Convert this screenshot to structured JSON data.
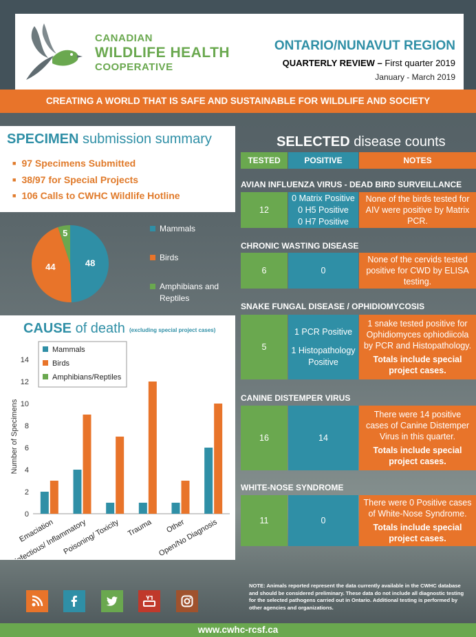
{
  "header": {
    "logo_line1": "CANADIAN",
    "logo_line2": "WILDLIFE HEALTH",
    "logo_line3": "COOPERATIVE",
    "region": "ONTARIO/NUNAVUT REGION",
    "review_bold": "QUARTERLY REVIEW –",
    "review_rest": " First quarter 2019",
    "dates": "January - March 2019",
    "colors": {
      "green": "#6aa84f",
      "teal": "#2f8fa6",
      "orange": "#e8742a"
    }
  },
  "banner": "CREATING A WORLD THAT IS SAFE AND SUSTAINABLE FOR WILDLIFE AND SOCIETY",
  "specimen": {
    "title_bold": "SPECIMEN",
    "title_rest": " submission summary",
    "items": [
      "97 Specimens Submitted",
      "38/97 for Special Projects",
      "106 Calls to CWHC Wildlife Hotline"
    ]
  },
  "pie_chart": {
    "chart_data": {
      "type": "pie",
      "slices": [
        {
          "name": "Mammals",
          "value": 48,
          "color": "#2f8fa6"
        },
        {
          "name": "Birds",
          "value": 44,
          "color": "#e8742a"
        },
        {
          "name": "Amphibians and Reptiles",
          "value": 5,
          "color": "#6aa84f"
        }
      ],
      "legend_position": "right"
    }
  },
  "cause": {
    "title_bold": "CAUSE",
    "title_rest": " of death",
    "subtitle": "(excluding special project cases)",
    "chart_data": {
      "type": "bar",
      "categories": [
        "Emaciation",
        "Infectious/ Inflammatory",
        "Poisoning/ Toxicity",
        "Trauma",
        "Other",
        "Open/No Diagnosis"
      ],
      "series": [
        {
          "name": "Mammals",
          "values": [
            2,
            4,
            1,
            1,
            1,
            6
          ],
          "color": "#2f8fa6"
        },
        {
          "name": "Birds",
          "values": [
            3,
            9,
            7,
            12,
            3,
            10
          ],
          "color": "#e8742a"
        },
        {
          "name": "Amphibians/Reptiles",
          "values": [
            0,
            0,
            0,
            0,
            0,
            0
          ],
          "color": "#6aa84f"
        }
      ],
      "ylabel": "Number of Specimens",
      "ylim": [
        0,
        14
      ],
      "yticks": [
        "0",
        "2",
        "4",
        "6",
        "8",
        "10",
        "12",
        "14"
      ],
      "legend_position": "top-left"
    }
  },
  "selected": {
    "title_bold": "SELECTED",
    "title_rest": " disease counts",
    "headers": {
      "tested": "TESTED",
      "positive": "POSITIVE",
      "notes": "NOTES"
    },
    "diseases": [
      {
        "name": "AVIAN INFLUENZA VIRUS - DEAD BIRD SURVEILLANCE",
        "tested": "12",
        "positive": [
          "0 Matrix Positive",
          "0 H5 Positive",
          "0 H7 Positive"
        ],
        "note": "None of the birds tested for AIV were positive by Matrix PCR.",
        "note_bold": ""
      },
      {
        "name": "CHRONIC WASTING DISEASE",
        "tested": "6",
        "positive": [
          "0"
        ],
        "note": "None of the cervids tested positive for CWD by ELISA testing.",
        "note_bold": ""
      },
      {
        "name": "SNAKE FUNGAL DISEASE / OPHIDIOMYCOSIS",
        "tested": "5",
        "positive": [
          "1 PCR Positive",
          "",
          "1 Histopathology Positive"
        ],
        "note": "1 snake tested positive for Ophidiomyces ophiodiicola by PCR and Histopathology.",
        "note_bold": "Totals include special project cases."
      },
      {
        "name": "CANINE DISTEMPER VIRUS",
        "tested": "16",
        "positive": [
          "14"
        ],
        "note": "There were 14 positive cases of Canine Distemper Virus in this quarter.",
        "note_bold": "Totals include special project cases."
      },
      {
        "name": "WHITE-NOSE SYNDROME",
        "tested": "11",
        "positive": [
          "0"
        ],
        "note": "There were 0 Positive cases of White-Nose Syndrome.",
        "note_bold": "Totals include special project cases."
      }
    ]
  },
  "footnote": "NOTE: Animals reported represent the data currently available in the CWHC database and should be considered preliminary. These data do not include all diagnostic testing for the selected pathogens carried out in Ontario. Additional testing is performed by other agencies and organizations.",
  "social": [
    {
      "name": "blog-icon",
      "color": "#e8742a"
    },
    {
      "name": "facebook-icon",
      "color": "#2f8fa6"
    },
    {
      "name": "twitter-icon",
      "color": "#6aa84f"
    },
    {
      "name": "youtube-icon",
      "color": "#c0392b"
    },
    {
      "name": "instagram-icon",
      "color": "#a0522d"
    }
  ],
  "footer": "www.cwhc-rcsf.ca"
}
